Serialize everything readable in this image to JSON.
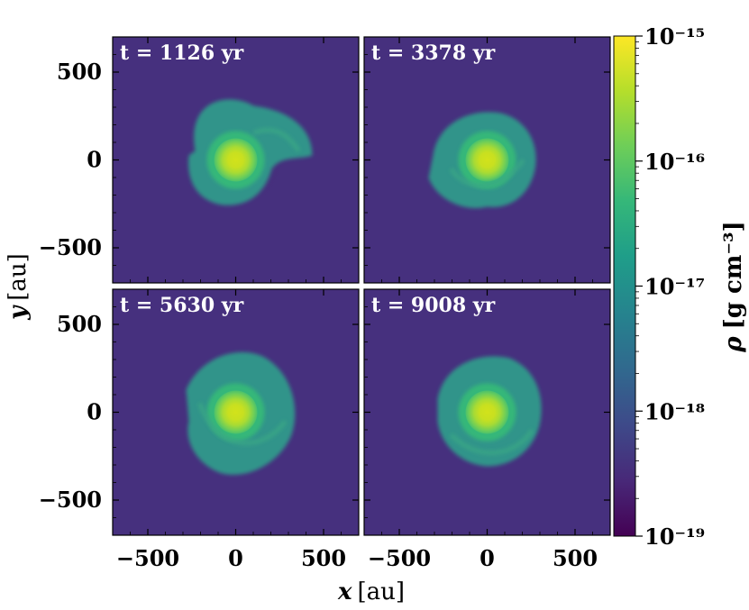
{
  "chart_data": {
    "type": "heatmap",
    "layout": "2x2 grid of density maps sharing axes and one colorbar",
    "xlabel_var": "x",
    "ylabel_var": "y",
    "axis_unit": "[au]",
    "xlim": [
      -700,
      700
    ],
    "ylim": [
      -700,
      700
    ],
    "x_ticks": [
      -500,
      0,
      500
    ],
    "y_ticks": [
      500,
      0,
      -500
    ],
    "x_tick_labels": [
      "−500",
      "0",
      "500"
    ],
    "y_tick_labels": [
      "500",
      "0",
      "−500"
    ],
    "panels": [
      {
        "time_label": "t = 1126 yr",
        "t": 1126,
        "unit": "yr",
        "morphology": "disk with single spiral arm to upper right"
      },
      {
        "time_label": "t = 3378 yr",
        "t": 3378,
        "unit": "yr",
        "morphology": "disk with spiral arms, extended lower-left"
      },
      {
        "time_label": "t = 5630 yr",
        "t": 5630,
        "unit": "yr",
        "morphology": "turbulent disk with spiral arms"
      },
      {
        "time_label": "t = 9008 yr",
        "t": 9008,
        "unit": "yr",
        "morphology": "compact disk with trailing arm"
      }
    ],
    "colorbar": {
      "label_var": "ρ",
      "label_unit": "[g cm⁻³]",
      "scale": "log",
      "colormap": "viridis",
      "range": [
        1e-19,
        1e-15
      ],
      "tick_labels": [
        "10⁻¹⁵",
        "10⁻¹⁶",
        "10⁻¹⁷",
        "10⁻¹⁸",
        "10⁻¹⁹"
      ]
    },
    "colors": [
      "#440154",
      "#482878",
      "#3e4989",
      "#31688e",
      "#26828e",
      "#1f9e89",
      "#35b779",
      "#6ece58",
      "#b5de2b",
      "#fde725"
    ]
  }
}
